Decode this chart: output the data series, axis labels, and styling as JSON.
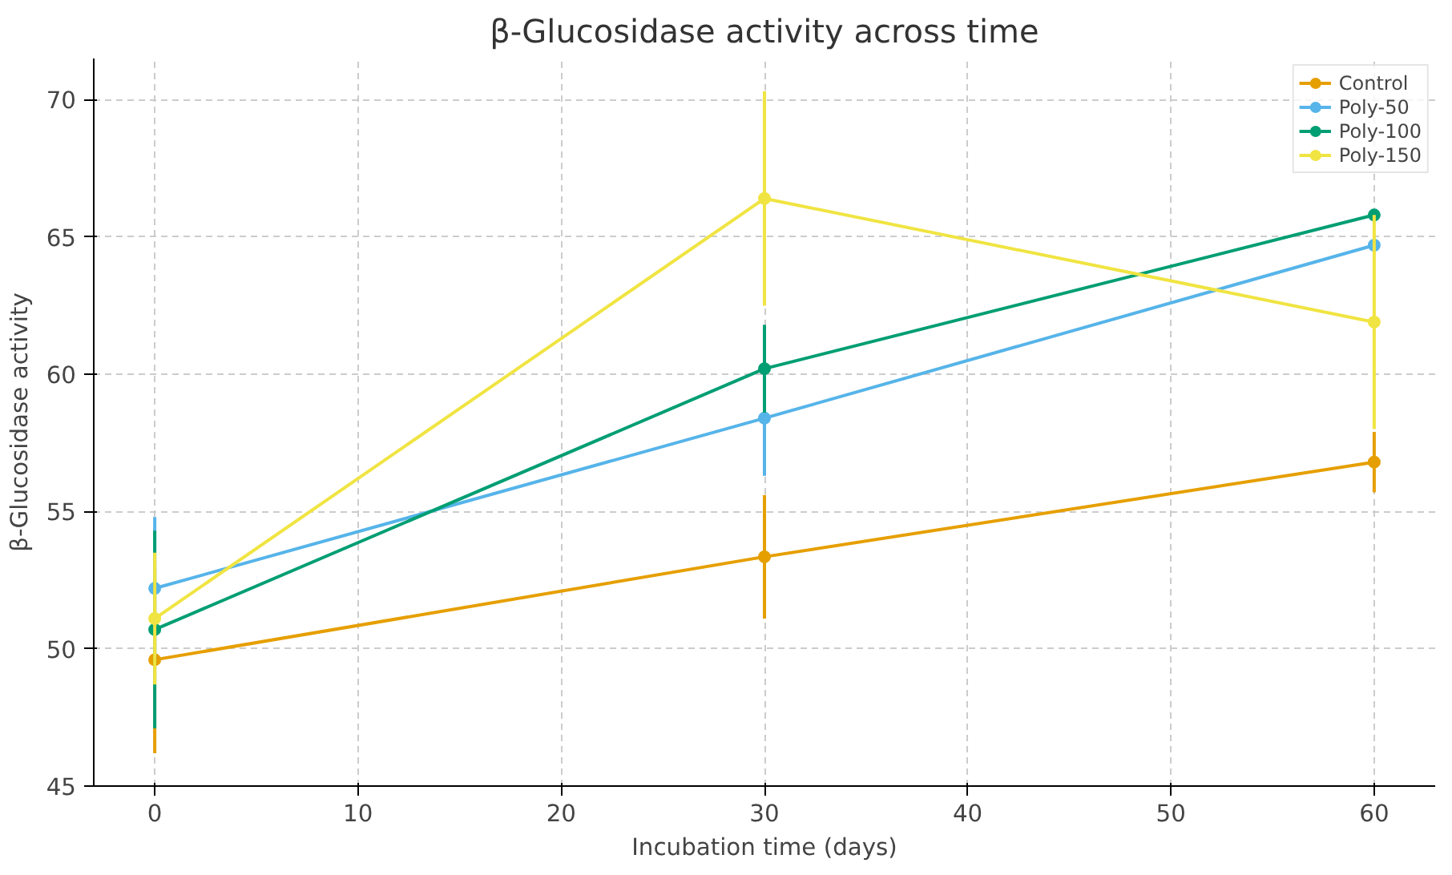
{
  "chart_data": {
    "type": "line",
    "title": "β-Glucosidase activity across time",
    "xlabel": "Incubation time (days)",
    "ylabel": "β-Glucosidase activity",
    "x": [
      0,
      30,
      60
    ],
    "xlim": [
      -3,
      63
    ],
    "xticks": [
      0,
      10,
      20,
      30,
      40,
      50,
      60
    ],
    "ylim": [
      45,
      71.5
    ],
    "yticks": [
      45,
      50,
      55,
      60,
      65,
      70
    ],
    "grid": true,
    "legend": "top right",
    "marker": "circle",
    "line_style": "solid",
    "series": [
      {
        "name": "Control",
        "color": "#e69f00",
        "values": [
          49.6,
          53.35,
          56.8
        ],
        "errors": [
          3.4,
          2.25,
          1.1
        ]
      },
      {
        "name": "Poly-50",
        "color": "#56b4e9",
        "values": [
          52.2,
          58.4,
          64.7
        ],
        "errors": [
          2.6,
          2.1,
          null
        ]
      },
      {
        "name": "Poly-100",
        "color": "#009e73",
        "values": [
          50.7,
          60.2,
          65.8
        ],
        "errors": [
          3.6,
          1.6,
          null
        ]
      },
      {
        "name": "Poly-150",
        "color": "#f0e442",
        "values": [
          51.1,
          66.4,
          61.9
        ],
        "errors": [
          2.4,
          3.9,
          3.9
        ]
      }
    ]
  }
}
